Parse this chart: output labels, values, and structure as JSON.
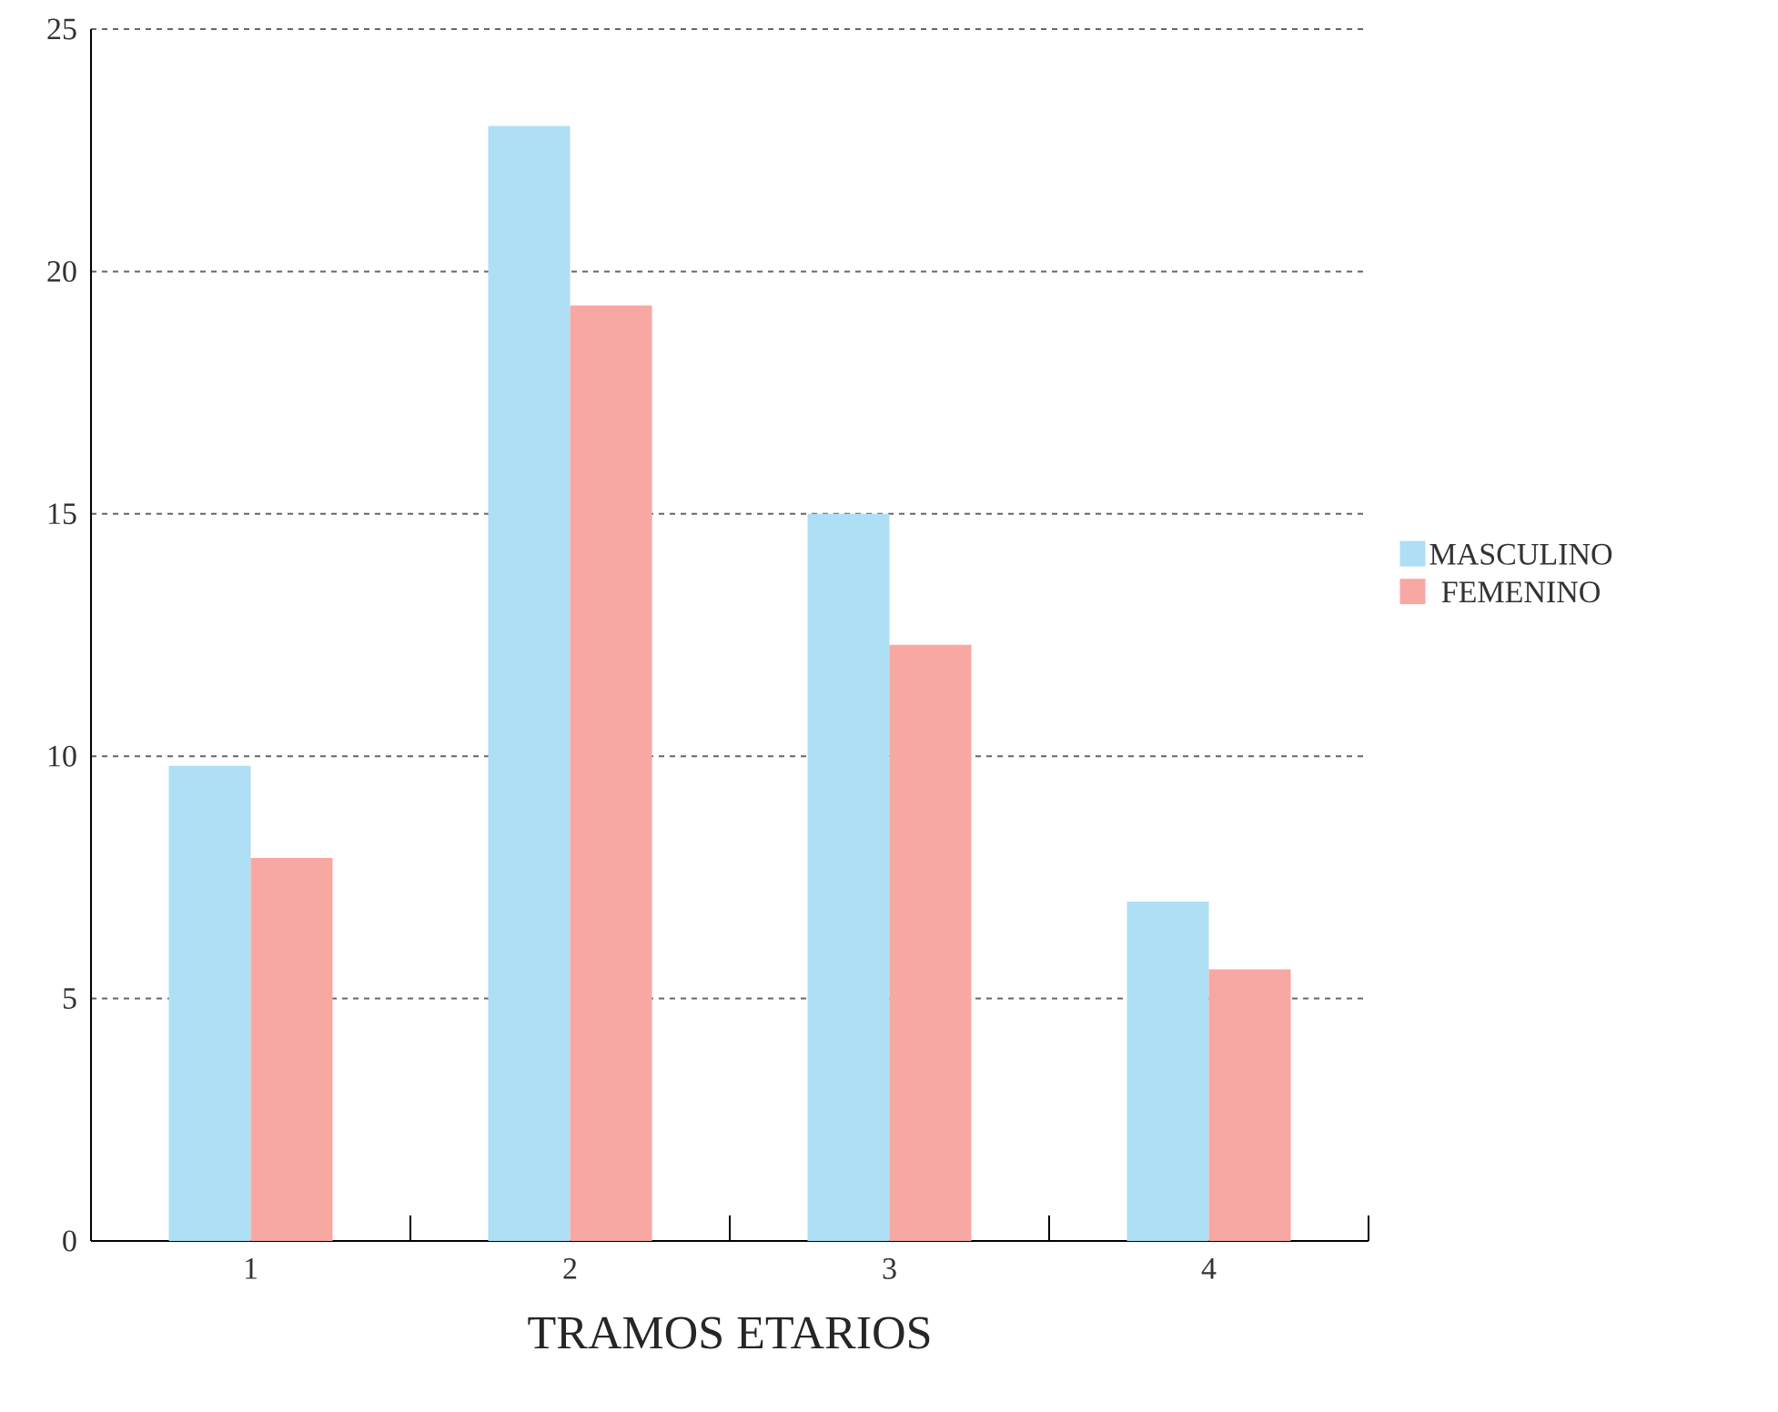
{
  "chart_data": {
    "type": "bar",
    "xlabel": "TRAMOS ETARIOS",
    "categories": [
      "1",
      "2",
      "3",
      "4"
    ],
    "series": [
      {
        "name": "MASCULINO",
        "color": "#aedff4",
        "values": [
          9.8,
          23,
          15,
          7
        ]
      },
      {
        "name": "FEMENINO",
        "color": "#f7a8a3",
        "values": [
          7.9,
          19.3,
          12.3,
          5.6
        ]
      }
    ],
    "ylim": [
      0,
      25
    ],
    "yticks": [
      0,
      5,
      10,
      15,
      20,
      25
    ],
    "grid": "y",
    "legend": "right"
  }
}
